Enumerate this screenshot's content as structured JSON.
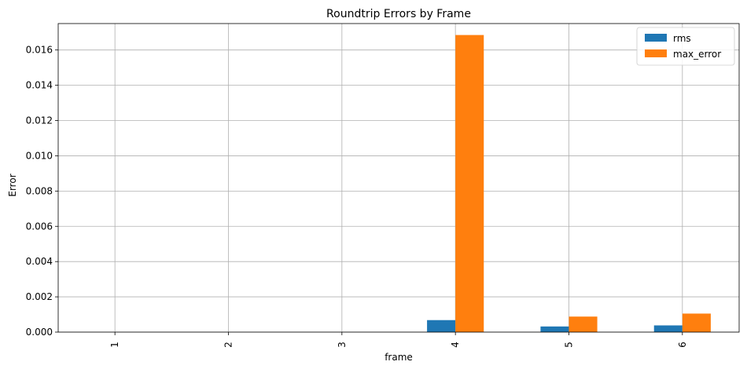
{
  "chart_data": {
    "type": "bar",
    "title": "Roundtrip Errors by Frame",
    "xlabel": "frame",
    "ylabel": "Error",
    "categories": [
      "1",
      "2",
      "3",
      "4",
      "5",
      "6"
    ],
    "series": [
      {
        "name": "rms",
        "color": "#1f77b4",
        "values": [
          0.0,
          0.0,
          0.0,
          0.00068,
          0.00032,
          0.00038
        ]
      },
      {
        "name": "max_error",
        "color": "#ff7f0e",
        "values": [
          0.0,
          0.0,
          0.0,
          0.01685,
          0.00088,
          0.00105
        ]
      }
    ],
    "ylim": [
      0,
      0.0175
    ],
    "yticks": [
      "0.000",
      "0.002",
      "0.004",
      "0.006",
      "0.008",
      "0.010",
      "0.012",
      "0.014",
      "0.016"
    ],
    "grid": true,
    "legend_position": "top-right"
  }
}
